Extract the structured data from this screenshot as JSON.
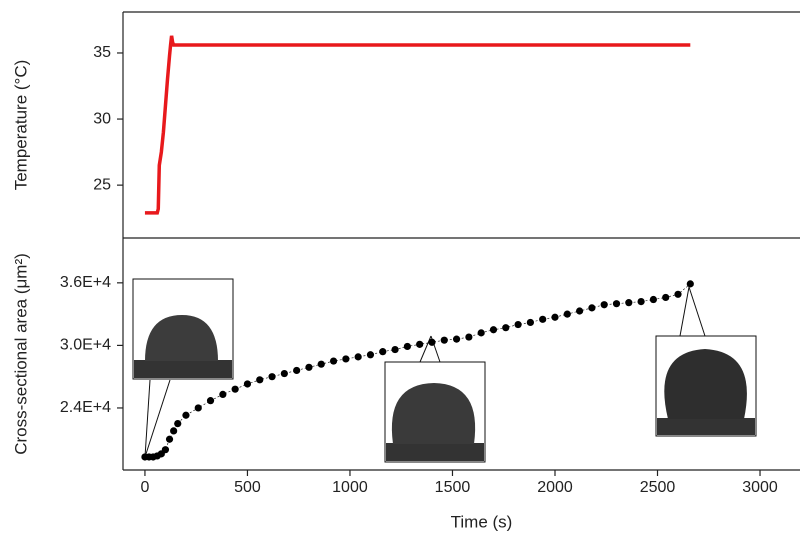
{
  "chart_data": [
    {
      "type": "line",
      "ylabel": "Temperature (°C)",
      "x": [
        0,
        60,
        65,
        70,
        80,
        90,
        100,
        110,
        120,
        125,
        130,
        135,
        140,
        2660
      ],
      "series": [
        {
          "color": "#e8191c",
          "values": [
            22.9,
            22.9,
            23.2,
            26.5,
            27.5,
            29,
            31,
            33,
            34.8,
            35.6,
            36.3,
            35.8,
            35.6,
            35.6
          ]
        }
      ],
      "xlim": [
        -107,
        3195
      ],
      "ylim": [
        21,
        38.1
      ],
      "yticks": [
        25,
        30,
        35
      ]
    },
    {
      "type": "scatter",
      "ylabel": "Cross-sectional area (μm²)",
      "xlabel": "Time (s)",
      "x": [
        0,
        20,
        40,
        60,
        80,
        100,
        120,
        140,
        160,
        200,
        260,
        320,
        380,
        440,
        500,
        560,
        620,
        680,
        740,
        800,
        860,
        920,
        980,
        1040,
        1100,
        1160,
        1220,
        1280,
        1340,
        1400,
        1460,
        1520,
        1580,
        1640,
        1700,
        1760,
        1820,
        1880,
        1940,
        2000,
        2060,
        2120,
        2180,
        2240,
        2300,
        2360,
        2420,
        2480,
        2540,
        2600,
        2660
      ],
      "series": [
        {
          "color": "#000000",
          "values": [
            19300,
            19300,
            19300,
            19400,
            19600,
            20000,
            21000,
            21800,
            22500,
            23300,
            24000,
            24700,
            25300,
            25800,
            26300,
            26700,
            27000,
            27300,
            27600,
            27900,
            28200,
            28500,
            28700,
            28900,
            29100,
            29400,
            29600,
            29900,
            30100,
            30300,
            30500,
            30600,
            30800,
            31200,
            31500,
            31700,
            32000,
            32200,
            32500,
            32700,
            33000,
            33300,
            33600,
            33900,
            34000,
            34100,
            34200,
            34400,
            34600,
            34900,
            35900
          ]
        }
      ],
      "xlim": [
        -107,
        3195
      ],
      "ylim": [
        18050,
        40300
      ],
      "xticks": [
        0,
        500,
        1000,
        1500,
        2000,
        2500,
        3000
      ],
      "yticks": [
        {
          "value": 24000,
          "label": "2.4E+4"
        },
        {
          "value": 30000,
          "label": "3.0E+4"
        },
        {
          "value": 36000,
          "label": "3.6E+4"
        }
      ]
    }
  ]
}
